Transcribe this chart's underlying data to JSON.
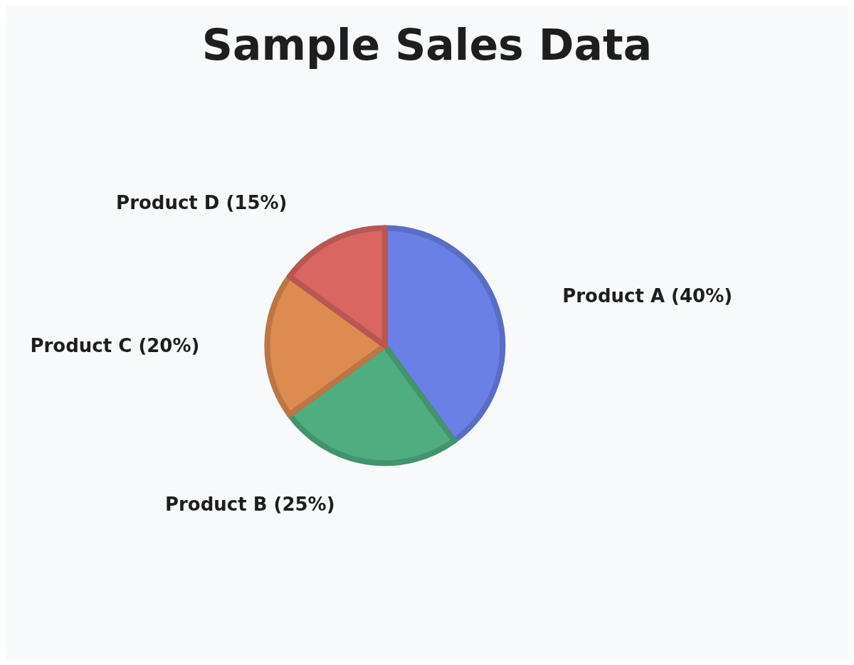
{
  "chart_data": {
    "type": "pie",
    "title": "Sample Sales Data",
    "categories": [
      "Product A (40%)",
      "Product B (25%)",
      "Product C (20%)",
      "Product D (15%)"
    ],
    "values": [
      40,
      25,
      20,
      15
    ],
    "colors": [
      "#6a80e6",
      "#4fad80",
      "#dd8b51",
      "#d96661"
    ]
  }
}
